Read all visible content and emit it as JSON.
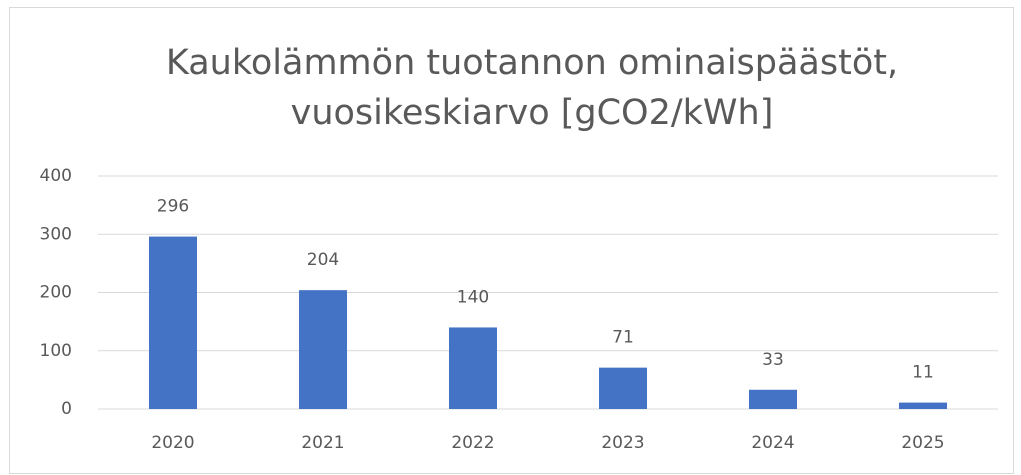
{
  "chart_data": {
    "type": "bar",
    "title": [
      "Kaukolämmön tuotannon ominaispäästöt,",
      "vuosikeskiarvo [gCO2/kWh]"
    ],
    "categories": [
      "2020",
      "2021",
      "2022",
      "2023",
      "2024",
      "2025"
    ],
    "values": [
      296,
      204,
      140,
      71,
      33,
      11
    ],
    "color": "#4472c4",
    "ylim": [
      0,
      400
    ],
    "yticks": [
      0,
      100,
      200,
      300,
      400
    ],
    "grid": true,
    "data_labels": true
  }
}
